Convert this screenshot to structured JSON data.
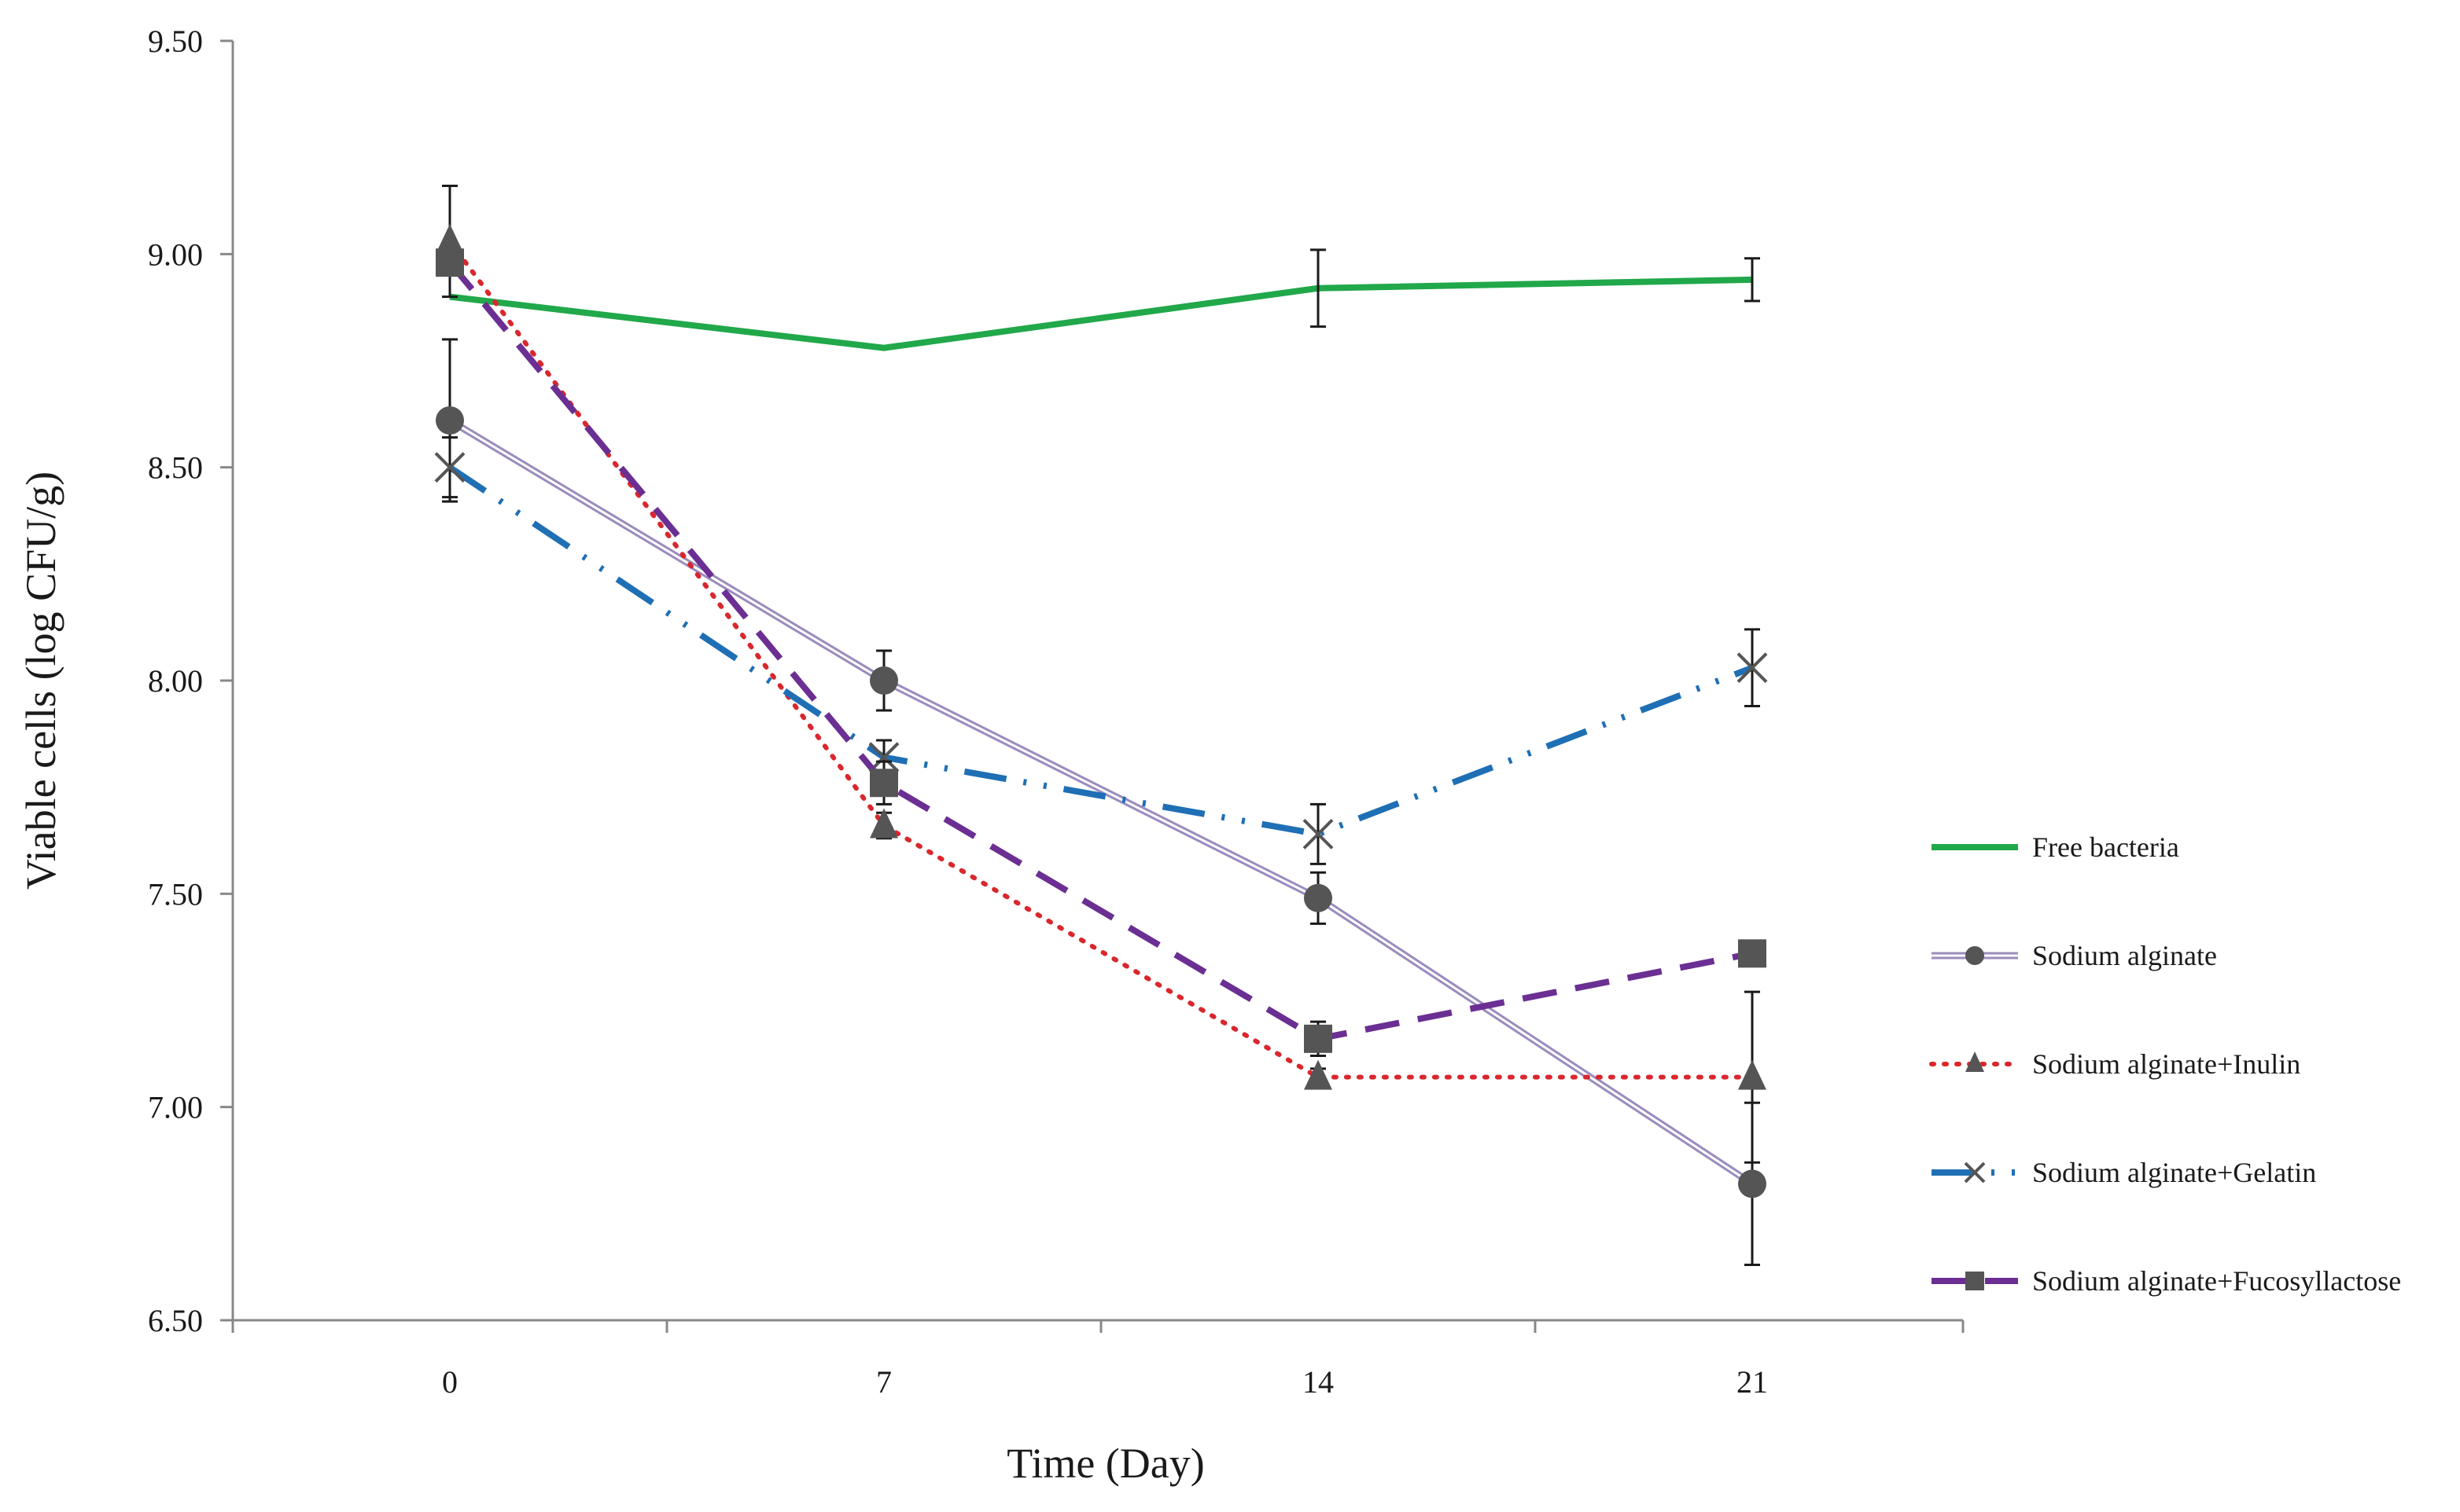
{
  "chart_data": {
    "type": "line",
    "title": "",
    "xlabel": "Time (Day)",
    "ylabel": "Viable cells (log CFU/g)",
    "x": [
      0,
      7,
      14,
      21
    ],
    "x_tick_labels": [
      "0",
      "7",
      "14",
      "21"
    ],
    "ylim": [
      6.5,
      9.5
    ],
    "y_ticks": [
      6.5,
      7.0,
      7.5,
      8.0,
      8.5,
      9.0,
      9.5
    ],
    "y_tick_labels": [
      "6.50",
      "7.00",
      "7.50",
      "8.00",
      "8.50",
      "9.00",
      "9.50"
    ],
    "grid": false,
    "legend_position": "right",
    "series": [
      {
        "name": "Free bacteria",
        "color": "#21a84a",
        "line_style": "solid",
        "marker": "none",
        "values": [
          8.9,
          8.78,
          8.92,
          8.94
        ],
        "errors": [
          0.0,
          0.0,
          0.09,
          0.05
        ]
      },
      {
        "name": "Sodium alginate",
        "color": "#9b8bbd",
        "line_style": "double",
        "marker": "circle",
        "values": [
          8.61,
          8.0,
          7.49,
          6.82
        ],
        "errors": [
          0.19,
          0.07,
          0.06,
          0.19
        ]
      },
      {
        "name": "Sodium alginate+Inulin",
        "color": "#d9272d",
        "line_style": "dotted",
        "marker": "triangle",
        "values": [
          9.03,
          7.66,
          7.07,
          7.07
        ],
        "errors": [
          0.13,
          0.03,
          0.02,
          0.2
        ]
      },
      {
        "name": "Sodium alginate+Gelatin",
        "color": "#1f6fb5",
        "line_style": "dashdot",
        "marker": "x",
        "values": [
          8.5,
          7.82,
          7.64,
          8.03
        ],
        "errors": [
          0.07,
          0.04,
          0.07,
          0.09
        ]
      },
      {
        "name": "Sodium alginate+Fucosyllactose",
        "color": "#6b2f93",
        "line_style": "dashed",
        "marker": "square",
        "values": [
          8.98,
          7.76,
          7.16,
          7.36
        ],
        "errors": [
          0.0,
          0.05,
          0.04,
          0.0
        ]
      }
    ]
  },
  "colors": {
    "axis": "#888888",
    "marker": "#555555",
    "errorbar": "#1a1a1a"
  }
}
